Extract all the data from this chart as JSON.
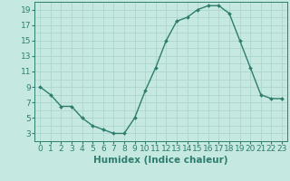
{
  "x": [
    0,
    1,
    2,
    3,
    4,
    5,
    6,
    7,
    8,
    9,
    10,
    11,
    12,
    13,
    14,
    15,
    16,
    17,
    18,
    19,
    20,
    21,
    22,
    23
  ],
  "y": [
    9,
    8,
    6.5,
    6.5,
    5,
    4,
    3.5,
    3,
    3,
    5,
    8.5,
    11.5,
    15,
    17.5,
    18,
    19,
    19.5,
    19.5,
    18.5,
    15,
    11.5,
    8,
    7.5,
    7.5
  ],
  "line_color": "#2e7d6e",
  "marker_color": "#2e7d6e",
  "bg_color": "#c5e8e0",
  "grid_color": "#b0d8d0",
  "xlabel": "Humidex (Indice chaleur)",
  "ylim": [
    2,
    20
  ],
  "xlim": [
    -0.5,
    23.5
  ],
  "yticks": [
    3,
    5,
    7,
    9,
    11,
    13,
    15,
    17,
    19
  ],
  "xticks": [
    0,
    1,
    2,
    3,
    4,
    5,
    6,
    7,
    8,
    9,
    10,
    11,
    12,
    13,
    14,
    15,
    16,
    17,
    18,
    19,
    20,
    21,
    22,
    23
  ],
  "tick_label_color": "#2e7d6e",
  "xlabel_fontsize": 7.5,
  "tick_fontsize": 6.5
}
